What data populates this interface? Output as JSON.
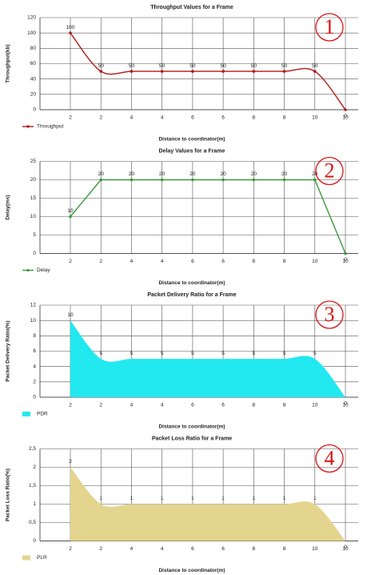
{
  "chart_data": [
    {
      "type": "line",
      "smooth": true,
      "title": "Throughput Values for a Frame",
      "xlabel": "Distance to coordinator(m)",
      "ylabel": "Throughput(kb)",
      "categories": [
        "2",
        "2",
        "4",
        "4",
        "6",
        "6",
        "8",
        "8",
        "10",
        "10"
      ],
      "series": [
        {
          "name": "Throughput",
          "color": "#b01818",
          "values": [
            100,
            50,
            50,
            50,
            50,
            50,
            50,
            50,
            50,
            0
          ]
        }
      ],
      "ylim": [
        0,
        120
      ],
      "yticks": [
        0,
        20,
        40,
        60,
        80,
        100,
        120
      ],
      "grid": true,
      "annotation": "1"
    },
    {
      "type": "line",
      "smooth": false,
      "title": "Delay Values for a Frame",
      "xlabel": "Distance to coordinator(m)",
      "ylabel": "Delay(ms)",
      "categories": [
        "2",
        "2",
        "4",
        "4",
        "6",
        "6",
        "8",
        "8",
        "10",
        "10"
      ],
      "series": [
        {
          "name": "Delay",
          "color": "#3a9a3a",
          "values": [
            10,
            20,
            20,
            20,
            20,
            20,
            20,
            20,
            20,
            0
          ]
        }
      ],
      "ylim": [
        0,
        25
      ],
      "yticks": [
        0,
        5,
        10,
        15,
        20,
        25
      ],
      "grid": true,
      "annotation": "2"
    },
    {
      "type": "area",
      "smooth": true,
      "title": "Packet Delivery Ratio for a Frame",
      "xlabel": "Distance to coordinator(m)",
      "ylabel": "Packet Delivery Ratio(%)",
      "categories": [
        "2",
        "2",
        "4",
        "4",
        "6",
        "6",
        "8",
        "8",
        "10",
        "10"
      ],
      "series": [
        {
          "name": "PDR",
          "color": "#22e8f0",
          "values": [
            10,
            5,
            5,
            5,
            5,
            5,
            5,
            5,
            5,
            0
          ]
        }
      ],
      "ylim": [
        0,
        12
      ],
      "yticks": [
        0,
        2,
        4,
        6,
        8,
        10,
        12
      ],
      "grid": true,
      "annotation": "3"
    },
    {
      "type": "area",
      "smooth": true,
      "title": "Packet Loss Ratio for a Frame",
      "xlabel": "Distance to coordinator(m)",
      "ylabel": "Packet Loss Ratio(%)",
      "categories": [
        "2",
        "2",
        "4",
        "4",
        "6",
        "6",
        "8",
        "8",
        "10",
        "10"
      ],
      "series": [
        {
          "name": "PLR",
          "color": "#e3d58e",
          "values": [
            2,
            1,
            1,
            1,
            1,
            1,
            1,
            1,
            1,
            0
          ]
        }
      ],
      "ylim": [
        0,
        2.5
      ],
      "yticks": [
        0,
        {
          "value": 0.5,
          "label": "0,5"
        },
        1,
        {
          "value": 1.5,
          "label": "1,5"
        },
        2,
        {
          "value": 2.5,
          "label": "2,5"
        }
      ],
      "grid": true,
      "annotation": "4"
    }
  ]
}
